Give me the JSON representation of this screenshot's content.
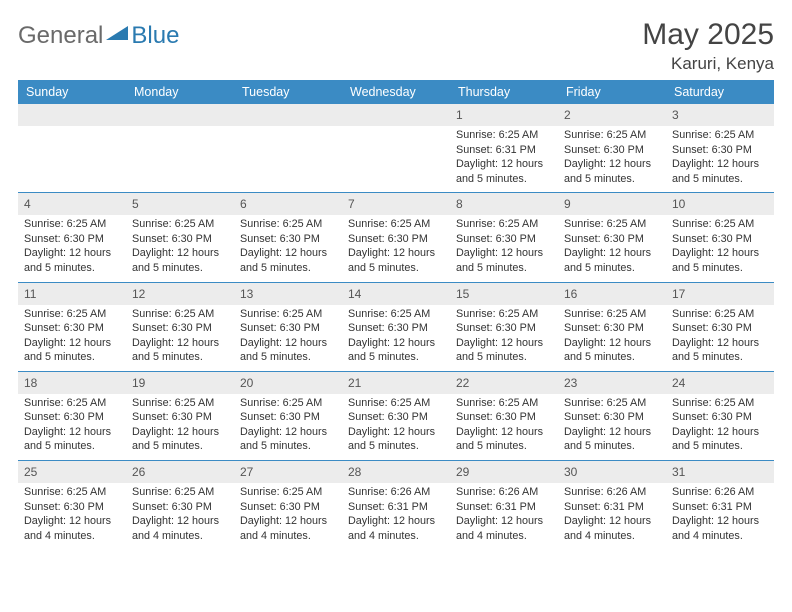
{
  "logo": {
    "general": "General",
    "blue": "Blue"
  },
  "header": {
    "month_title": "May 2025",
    "location": "Karuri, Kenya"
  },
  "colors": {
    "header_bg": "#3b8bc4",
    "daynum_bg": "#ececec",
    "week_border": "#3b8bc4",
    "logo_blue": "#2a7ab0",
    "logo_gray": "#6a6a6a"
  },
  "day_headers": [
    "Sunday",
    "Monday",
    "Tuesday",
    "Wednesday",
    "Thursday",
    "Friday",
    "Saturday"
  ],
  "weeks": [
    [
      {
        "day": "",
        "lines": [
          "",
          "",
          "",
          ""
        ]
      },
      {
        "day": "",
        "lines": [
          "",
          "",
          "",
          ""
        ]
      },
      {
        "day": "",
        "lines": [
          "",
          "",
          "",
          ""
        ]
      },
      {
        "day": "",
        "lines": [
          "",
          "",
          "",
          ""
        ]
      },
      {
        "day": "1",
        "lines": [
          "Sunrise: 6:25 AM",
          "Sunset: 6:31 PM",
          "Daylight: 12 hours",
          "and 5 minutes."
        ]
      },
      {
        "day": "2",
        "lines": [
          "Sunrise: 6:25 AM",
          "Sunset: 6:30 PM",
          "Daylight: 12 hours",
          "and 5 minutes."
        ]
      },
      {
        "day": "3",
        "lines": [
          "Sunrise: 6:25 AM",
          "Sunset: 6:30 PM",
          "Daylight: 12 hours",
          "and 5 minutes."
        ]
      }
    ],
    [
      {
        "day": "4",
        "lines": [
          "Sunrise: 6:25 AM",
          "Sunset: 6:30 PM",
          "Daylight: 12 hours",
          "and 5 minutes."
        ]
      },
      {
        "day": "5",
        "lines": [
          "Sunrise: 6:25 AM",
          "Sunset: 6:30 PM",
          "Daylight: 12 hours",
          "and 5 minutes."
        ]
      },
      {
        "day": "6",
        "lines": [
          "Sunrise: 6:25 AM",
          "Sunset: 6:30 PM",
          "Daylight: 12 hours",
          "and 5 minutes."
        ]
      },
      {
        "day": "7",
        "lines": [
          "Sunrise: 6:25 AM",
          "Sunset: 6:30 PM",
          "Daylight: 12 hours",
          "and 5 minutes."
        ]
      },
      {
        "day": "8",
        "lines": [
          "Sunrise: 6:25 AM",
          "Sunset: 6:30 PM",
          "Daylight: 12 hours",
          "and 5 minutes."
        ]
      },
      {
        "day": "9",
        "lines": [
          "Sunrise: 6:25 AM",
          "Sunset: 6:30 PM",
          "Daylight: 12 hours",
          "and 5 minutes."
        ]
      },
      {
        "day": "10",
        "lines": [
          "Sunrise: 6:25 AM",
          "Sunset: 6:30 PM",
          "Daylight: 12 hours",
          "and 5 minutes."
        ]
      }
    ],
    [
      {
        "day": "11",
        "lines": [
          "Sunrise: 6:25 AM",
          "Sunset: 6:30 PM",
          "Daylight: 12 hours",
          "and 5 minutes."
        ]
      },
      {
        "day": "12",
        "lines": [
          "Sunrise: 6:25 AM",
          "Sunset: 6:30 PM",
          "Daylight: 12 hours",
          "and 5 minutes."
        ]
      },
      {
        "day": "13",
        "lines": [
          "Sunrise: 6:25 AM",
          "Sunset: 6:30 PM",
          "Daylight: 12 hours",
          "and 5 minutes."
        ]
      },
      {
        "day": "14",
        "lines": [
          "Sunrise: 6:25 AM",
          "Sunset: 6:30 PM",
          "Daylight: 12 hours",
          "and 5 minutes."
        ]
      },
      {
        "day": "15",
        "lines": [
          "Sunrise: 6:25 AM",
          "Sunset: 6:30 PM",
          "Daylight: 12 hours",
          "and 5 minutes."
        ]
      },
      {
        "day": "16",
        "lines": [
          "Sunrise: 6:25 AM",
          "Sunset: 6:30 PM",
          "Daylight: 12 hours",
          "and 5 minutes."
        ]
      },
      {
        "day": "17",
        "lines": [
          "Sunrise: 6:25 AM",
          "Sunset: 6:30 PM",
          "Daylight: 12 hours",
          "and 5 minutes."
        ]
      }
    ],
    [
      {
        "day": "18",
        "lines": [
          "Sunrise: 6:25 AM",
          "Sunset: 6:30 PM",
          "Daylight: 12 hours",
          "and 5 minutes."
        ]
      },
      {
        "day": "19",
        "lines": [
          "Sunrise: 6:25 AM",
          "Sunset: 6:30 PM",
          "Daylight: 12 hours",
          "and 5 minutes."
        ]
      },
      {
        "day": "20",
        "lines": [
          "Sunrise: 6:25 AM",
          "Sunset: 6:30 PM",
          "Daylight: 12 hours",
          "and 5 minutes."
        ]
      },
      {
        "day": "21",
        "lines": [
          "Sunrise: 6:25 AM",
          "Sunset: 6:30 PM",
          "Daylight: 12 hours",
          "and 5 minutes."
        ]
      },
      {
        "day": "22",
        "lines": [
          "Sunrise: 6:25 AM",
          "Sunset: 6:30 PM",
          "Daylight: 12 hours",
          "and 5 minutes."
        ]
      },
      {
        "day": "23",
        "lines": [
          "Sunrise: 6:25 AM",
          "Sunset: 6:30 PM",
          "Daylight: 12 hours",
          "and 5 minutes."
        ]
      },
      {
        "day": "24",
        "lines": [
          "Sunrise: 6:25 AM",
          "Sunset: 6:30 PM",
          "Daylight: 12 hours",
          "and 5 minutes."
        ]
      }
    ],
    [
      {
        "day": "25",
        "lines": [
          "Sunrise: 6:25 AM",
          "Sunset: 6:30 PM",
          "Daylight: 12 hours",
          "and 4 minutes."
        ]
      },
      {
        "day": "26",
        "lines": [
          "Sunrise: 6:25 AM",
          "Sunset: 6:30 PM",
          "Daylight: 12 hours",
          "and 4 minutes."
        ]
      },
      {
        "day": "27",
        "lines": [
          "Sunrise: 6:25 AM",
          "Sunset: 6:30 PM",
          "Daylight: 12 hours",
          "and 4 minutes."
        ]
      },
      {
        "day": "28",
        "lines": [
          "Sunrise: 6:26 AM",
          "Sunset: 6:31 PM",
          "Daylight: 12 hours",
          "and 4 minutes."
        ]
      },
      {
        "day": "29",
        "lines": [
          "Sunrise: 6:26 AM",
          "Sunset: 6:31 PM",
          "Daylight: 12 hours",
          "and 4 minutes."
        ]
      },
      {
        "day": "30",
        "lines": [
          "Sunrise: 6:26 AM",
          "Sunset: 6:31 PM",
          "Daylight: 12 hours",
          "and 4 minutes."
        ]
      },
      {
        "day": "31",
        "lines": [
          "Sunrise: 6:26 AM",
          "Sunset: 6:31 PM",
          "Daylight: 12 hours",
          "and 4 minutes."
        ]
      }
    ]
  ]
}
